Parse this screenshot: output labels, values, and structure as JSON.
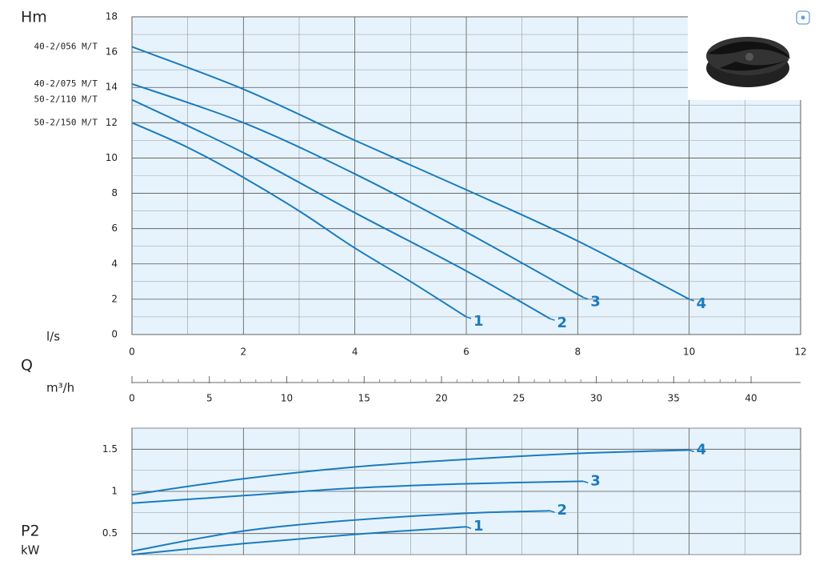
{
  "chart_data": [
    {
      "type": "line",
      "y_label": "Hm",
      "x_title": "Q",
      "x_label": "l/s",
      "xlim": [
        0,
        12
      ],
      "xticks": [
        0,
        2,
        4,
        6,
        8,
        10,
        12
      ],
      "ylim": [
        0,
        18
      ],
      "yticks": [
        0,
        2,
        4,
        6,
        8,
        10,
        12,
        14,
        16,
        18
      ],
      "x2_label": "m³/h",
      "x2lim": [
        0,
        43.2
      ],
      "x2ticks": [
        0,
        5,
        10,
        15,
        20,
        25,
        30,
        35,
        40
      ],
      "grid": true,
      "series": [
        {
          "name": "1",
          "model": "50-2/150 M/T",
          "color": "#1a7bbf",
          "x": [
            0,
            1,
            2,
            3,
            4,
            5,
            6
          ],
          "values": [
            12,
            10.6,
            8.9,
            7.0,
            4.9,
            3.0,
            1.0
          ]
        },
        {
          "name": "2",
          "model": "50-2/110 M/T",
          "color": "#1a7bbf",
          "x": [
            0,
            2,
            4,
            6,
            7.5
          ],
          "values": [
            13.3,
            10.3,
            6.9,
            3.6,
            0.9
          ]
        },
        {
          "name": "3",
          "model": "40-2/075 M/T",
          "color": "#1a7bbf",
          "x": [
            0,
            2,
            4,
            6,
            8.1
          ],
          "values": [
            14.2,
            12.0,
            9.1,
            5.8,
            2.1
          ]
        },
        {
          "name": "4",
          "model": "40-2/056 M/T",
          "color": "#1a7bbf",
          "x": [
            0,
            2,
            4,
            6,
            8,
            10
          ],
          "values": [
            16.3,
            13.9,
            11.0,
            8.2,
            5.3,
            2.0
          ]
        }
      ]
    },
    {
      "type": "line",
      "y_label": "P2",
      "y_unit": "kW",
      "xlim": [
        0,
        12
      ],
      "ylim": [
        0.25,
        1.75
      ],
      "yticks": [
        0.5,
        1,
        1.5
      ],
      "grid": true,
      "series": [
        {
          "name": "1",
          "color": "#1a7bbf",
          "x": [
            0,
            2,
            4,
            6
          ],
          "values": [
            0.25,
            0.38,
            0.49,
            0.58
          ]
        },
        {
          "name": "2",
          "color": "#1a7bbf",
          "x": [
            0,
            2,
            4,
            6,
            7.5
          ],
          "values": [
            0.29,
            0.53,
            0.66,
            0.74,
            0.77
          ]
        },
        {
          "name": "3",
          "color": "#1a7bbf",
          "x": [
            0,
            2,
            4,
            6,
            8.1
          ],
          "values": [
            0.86,
            0.95,
            1.04,
            1.09,
            1.12
          ]
        },
        {
          "name": "4",
          "color": "#1a7bbf",
          "x": [
            0,
            2,
            4,
            6,
            8,
            10
          ],
          "values": [
            0.96,
            1.15,
            1.29,
            1.38,
            1.45,
            1.49
          ]
        }
      ]
    }
  ]
}
